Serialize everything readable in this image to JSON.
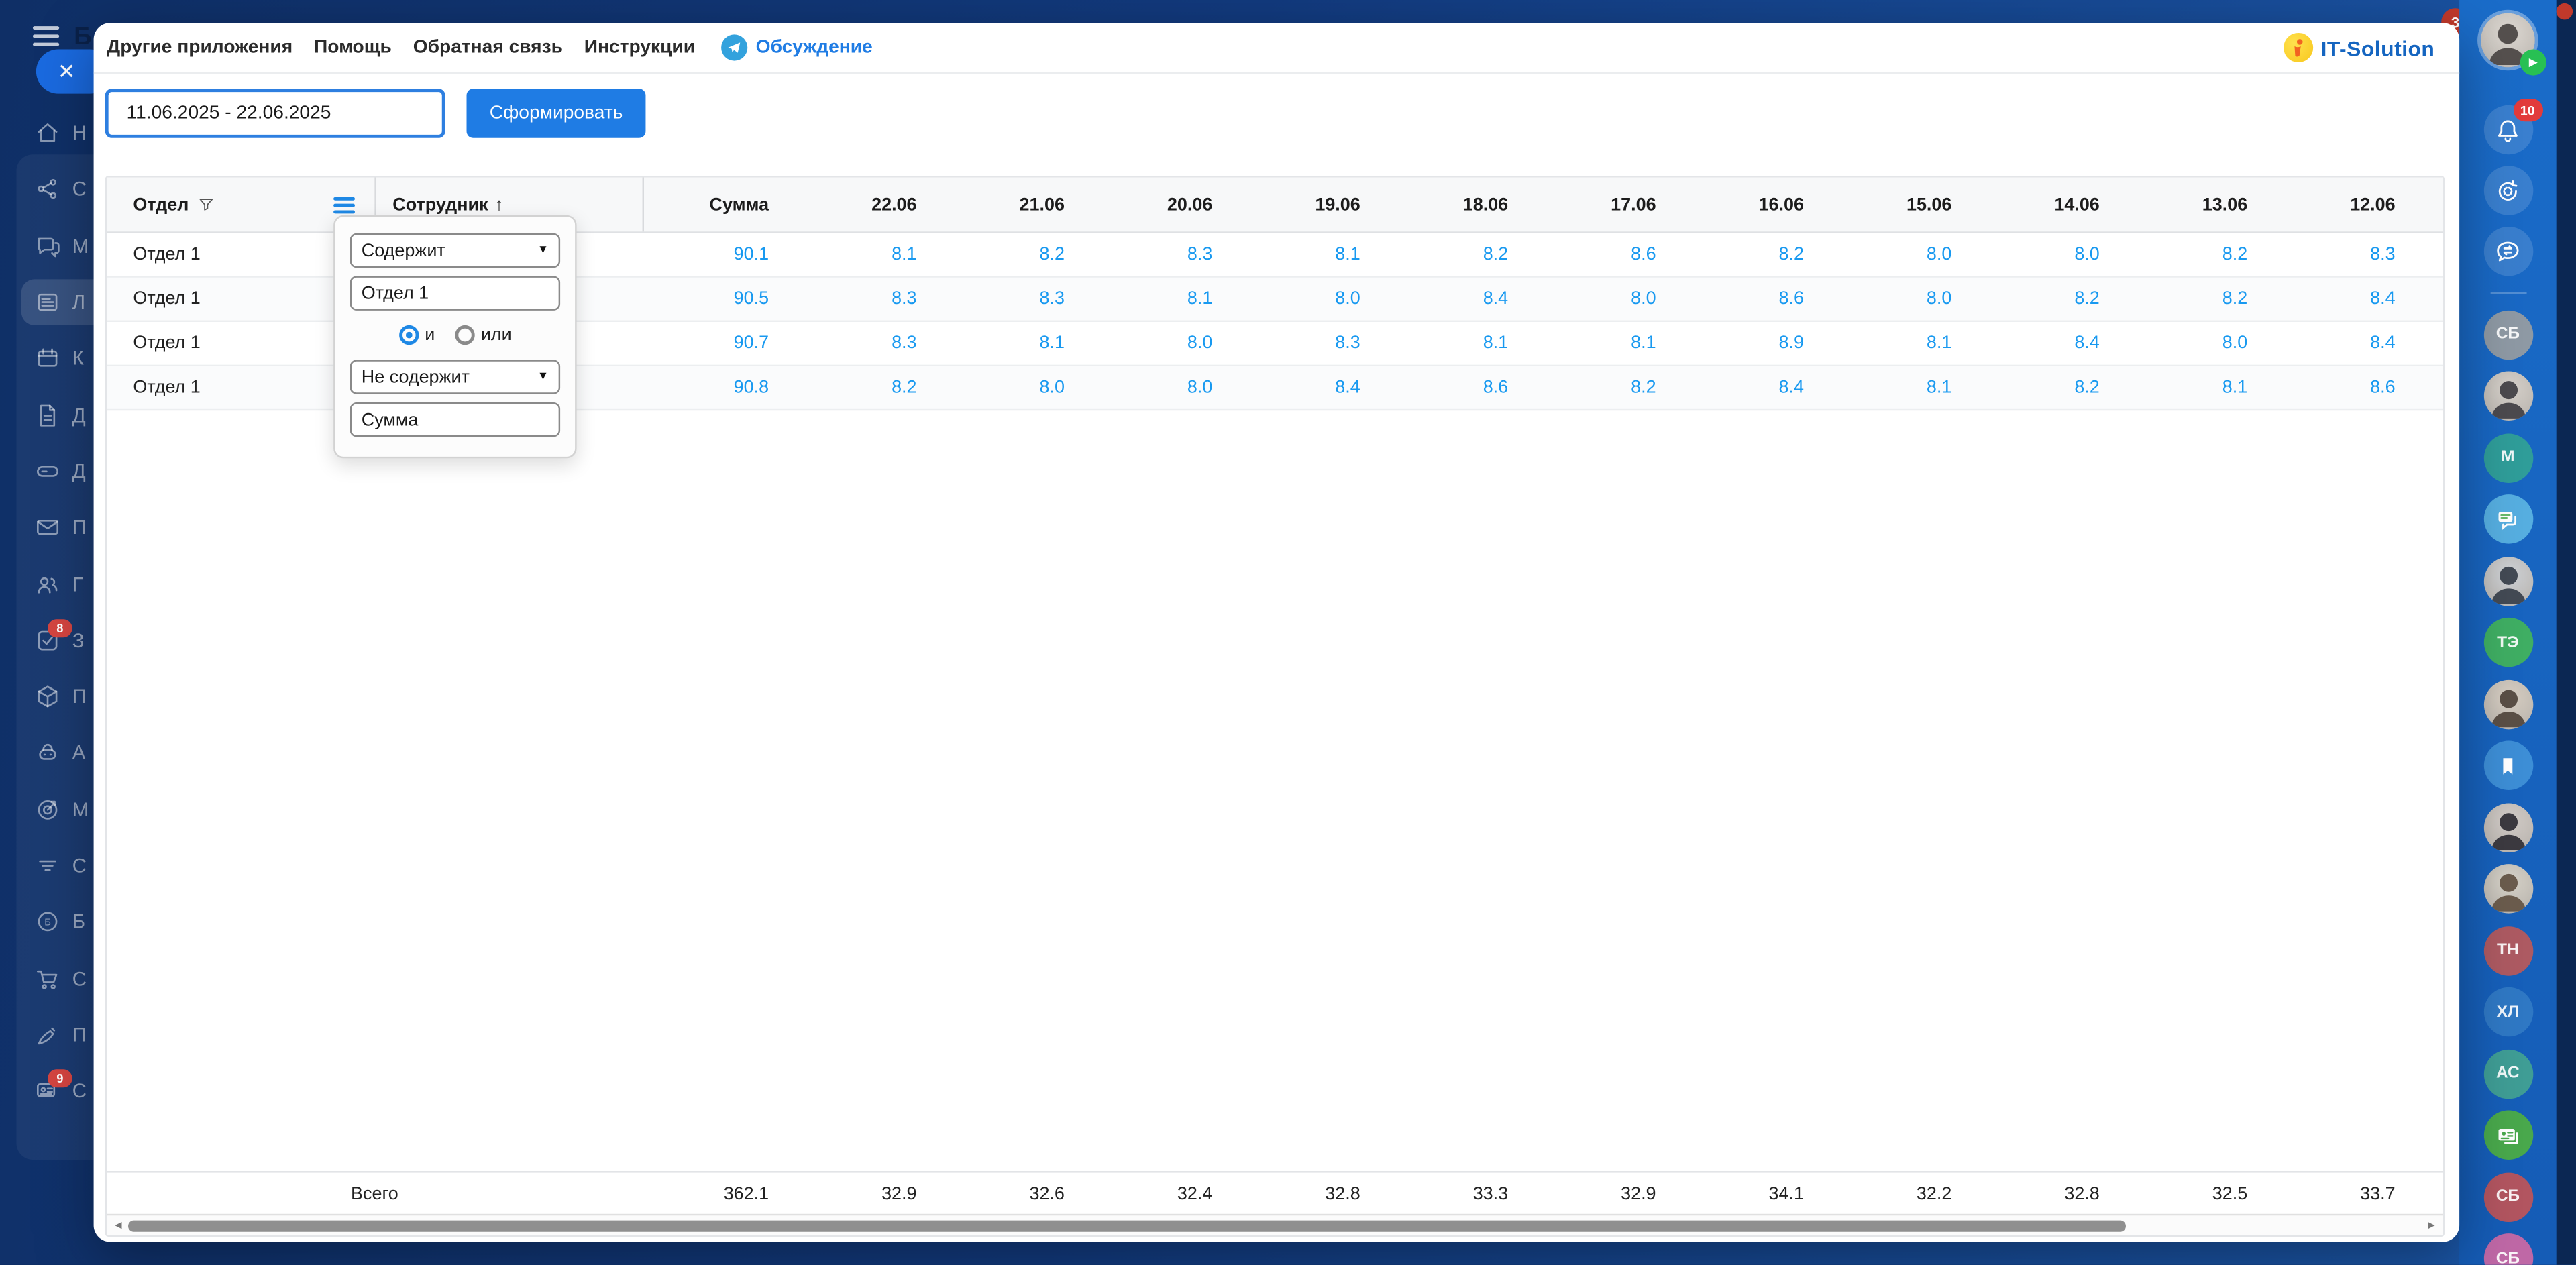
{
  "menu": {
    "items": [
      "Другие приложения",
      "Помощь",
      "Обратная связь",
      "Инструкции"
    ],
    "discussion_label": "Обсуждение"
  },
  "logo": {
    "text": "IT-Solution"
  },
  "toolbar": {
    "date_range": "11.06.2025 - 22.06.2025",
    "generate_label": "Сформировать"
  },
  "icons": {
    "close": "✕",
    "sort_asc": "↑",
    "dropdown": "▼",
    "scroll_left": "◄",
    "scroll_right": "►",
    "play": "▶"
  },
  "table": {
    "columns": {
      "department": "Отдел",
      "employee": "Сотрудник",
      "sum": "Сумма",
      "dates": [
        "22.06",
        "21.06",
        "20.06",
        "19.06",
        "18.06",
        "17.06",
        "16.06",
        "15.06",
        "14.06",
        "13.06",
        "12.06"
      ]
    },
    "rows": [
      {
        "department": "Отдел 1",
        "sum": "90.1",
        "values": [
          "8.1",
          "8.2",
          "8.3",
          "8.1",
          "8.2",
          "8.6",
          "8.2",
          "8.0",
          "8.0",
          "8.2",
          "8.3"
        ]
      },
      {
        "department": "Отдел 1",
        "sum": "90.5",
        "values": [
          "8.3",
          "8.3",
          "8.1",
          "8.0",
          "8.4",
          "8.0",
          "8.6",
          "8.0",
          "8.2",
          "8.2",
          "8.4"
        ]
      },
      {
        "department": "Отдел 1",
        "sum": "90.7",
        "values": [
          "8.3",
          "8.1",
          "8.0",
          "8.3",
          "8.1",
          "8.1",
          "8.9",
          "8.1",
          "8.4",
          "8.0",
          "8.4"
        ]
      },
      {
        "department": "Отдел 1",
        "sum": "90.8",
        "values": [
          "8.2",
          "8.0",
          "8.0",
          "8.4",
          "8.6",
          "8.2",
          "8.4",
          "8.1",
          "8.2",
          "8.1",
          "8.6"
        ]
      }
    ],
    "footer": {
      "label": "Всего",
      "sum": "362.1",
      "values": [
        "32.9",
        "32.6",
        "32.4",
        "32.8",
        "33.3",
        "32.9",
        "34.1",
        "32.2",
        "32.8",
        "32.5",
        "33.7"
      ]
    }
  },
  "filter_popup": {
    "condition1": "Содержит",
    "value1": "Отдел 1",
    "and_label": "и",
    "or_label": "или",
    "and_selected": true,
    "condition2": "Не содержит",
    "value2": "Сумма"
  },
  "left_sidebar": {
    "brand_letter": "Б",
    "items": [
      {
        "icon": "home",
        "letter": "Н"
      },
      {
        "icon": "share",
        "letter": "С"
      },
      {
        "icon": "chat",
        "letter": "М"
      },
      {
        "icon": "feed",
        "letter": "Л",
        "active": true
      },
      {
        "icon": "calendar",
        "letter": "К"
      },
      {
        "icon": "doc",
        "letter": "Д"
      },
      {
        "icon": "drive",
        "letter": "Д"
      },
      {
        "icon": "mail",
        "letter": "П"
      },
      {
        "icon": "people",
        "letter": "Г"
      },
      {
        "icon": "tasks",
        "letter": "З",
        "badge": "8"
      },
      {
        "icon": "box",
        "letter": "П"
      },
      {
        "icon": "robot",
        "letter": "А"
      },
      {
        "icon": "target",
        "letter": "М"
      },
      {
        "icon": "funnel",
        "letter": "С"
      },
      {
        "icon": "circleb",
        "letter": "Б"
      },
      {
        "icon": "cart",
        "letter": "С"
      },
      {
        "icon": "pen",
        "letter": "П"
      },
      {
        "icon": "card",
        "letter": "С",
        "badge": "9"
      }
    ]
  },
  "right_sidebar": {
    "corner_badge": "3",
    "bell_badge": "10",
    "accent_colors": {
      "badge_red": "#e23b3b",
      "online_green": "#28c053",
      "rail_blue": "#1a6cc9"
    },
    "items": [
      {
        "kind": "initials",
        "text": "СБ",
        "color": "#8e99a4"
      },
      {
        "kind": "photo",
        "bg": "#d8d3cd",
        "fg": "#4c4a4e"
      },
      {
        "kind": "initials",
        "text": "М",
        "color": "#2f9d99"
      },
      {
        "kind": "icon",
        "icon": "bubbles",
        "color": "#56aee0"
      },
      {
        "kind": "photo",
        "bg": "#cfd3d8",
        "fg": "#434a54"
      },
      {
        "kind": "initials",
        "text": "ТЭ",
        "color": "#3fae63"
      },
      {
        "kind": "photo",
        "bg": "#d9d0c4",
        "fg": "#5a4f46"
      },
      {
        "kind": "icon",
        "icon": "bookmark",
        "color": "#3d8ed6"
      },
      {
        "kind": "photo",
        "bg": "#d3cdc9",
        "fg": "#3c3a40"
      },
      {
        "kind": "photo",
        "bg": "#d8d4ca",
        "fg": "#6b5c4d"
      },
      {
        "kind": "initials",
        "text": "ТН",
        "color": "#ad5a62"
      },
      {
        "kind": "initials",
        "text": "ХЛ",
        "color": "#2f78c4"
      },
      {
        "kind": "initials",
        "text": "АС",
        "color": "#3f9d95"
      },
      {
        "kind": "icon",
        "icon": "idcard",
        "color": "#49a84c"
      },
      {
        "kind": "initials",
        "text": "СБ",
        "color": "#b25560"
      },
      {
        "kind": "initials",
        "text": "СБ",
        "color": "#bf68a6"
      }
    ]
  }
}
